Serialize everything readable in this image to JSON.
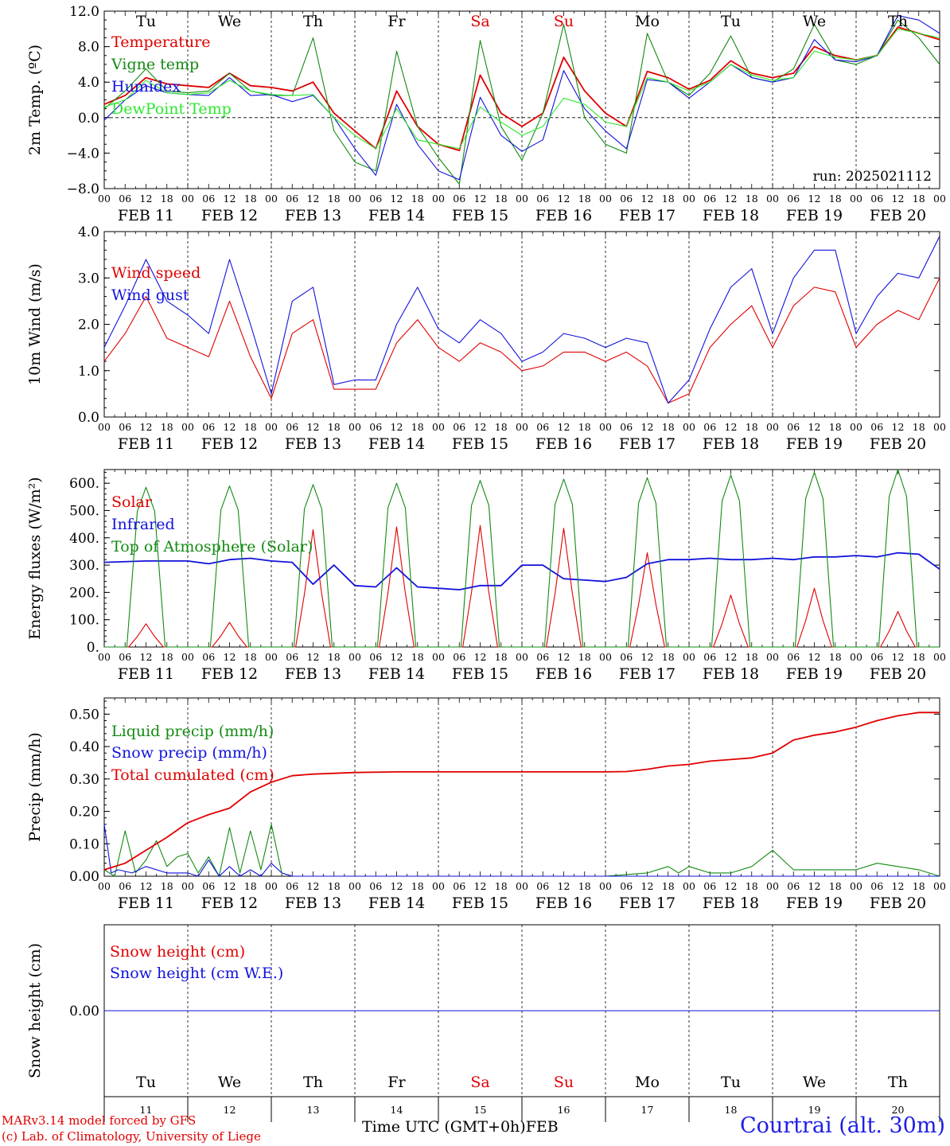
{
  "colors": {
    "red": "#e00000",
    "green": "#138a13",
    "blue": "#1212dd",
    "light_green": "#2de82d",
    "black": "#000000",
    "station_blue": "#1e1ee6"
  },
  "days": {
    "dates": [
      "FEB 11",
      "FEB 12",
      "FEB 13",
      "FEB 14",
      "FEB 15",
      "FEB 16",
      "FEB 17",
      "FEB 18",
      "FEB 19",
      "FEB 20"
    ],
    "weekdays": [
      "Tu",
      "We",
      "Th",
      "Fr",
      "Sa",
      "Su",
      "Mo",
      "Tu",
      "We",
      "Th"
    ],
    "weekend": [
      false,
      false,
      false,
      false,
      true,
      true,
      false,
      false,
      false,
      false
    ],
    "numbers": [
      "11",
      "12",
      "13",
      "14",
      "15",
      "16",
      "17",
      "18",
      "19",
      "20"
    ],
    "hour_labels": [
      "00",
      "06",
      "12",
      "18"
    ],
    "final_hour_label": "00"
  },
  "chart_data": [
    {
      "type": "line",
      "ylabel": "2m Temp. (ºC)",
      "ylim": [
        -8,
        12
      ],
      "yticks": [
        "12.0",
        "8.0",
        "4.0",
        "0.0",
        "−4.0",
        "−8.0"
      ],
      "zero_line": true,
      "annotation": "run: 2025021112",
      "x_unit": "hours since FEB 11 00 UTC",
      "series": [
        {
          "name": "Temperature",
          "color": "red",
          "x": [
            0,
            6,
            12,
            18,
            24,
            30,
            36,
            42,
            48,
            54,
            60,
            66,
            72,
            78,
            84,
            90,
            96,
            102,
            108,
            114,
            120,
            126,
            132,
            138,
            144,
            150,
            156,
            162,
            168,
            174,
            180,
            186,
            192,
            198,
            204,
            210,
            216,
            222,
            228,
            234,
            240
          ],
          "y": [
            1.5,
            2.5,
            4.5,
            3.8,
            3.6,
            3.4,
            5.0,
            3.6,
            3.4,
            3.0,
            4.0,
            0.5,
            -1.5,
            -3.5,
            3.0,
            -1.0,
            -3.0,
            -3.7,
            4.8,
            0.5,
            -1.0,
            0.5,
            6.8,
            3.0,
            0.5,
            -1.0,
            5.2,
            4.5,
            3.2,
            4.2,
            6.4,
            5.0,
            4.5,
            5.0,
            8.0,
            7.0,
            6.5,
            7.0,
            10.2,
            9.5,
            8.8
          ]
        },
        {
          "name": "Vigne temp",
          "color": "green",
          "x": [
            0,
            6,
            12,
            18,
            24,
            30,
            36,
            42,
            48,
            54,
            60,
            66,
            72,
            78,
            84,
            90,
            96,
            102,
            108,
            114,
            120,
            126,
            132,
            138,
            144,
            150,
            156,
            162,
            168,
            174,
            180,
            186,
            192,
            198,
            204,
            210,
            216,
            222,
            228,
            234,
            240
          ],
          "y": [
            1.0,
            3.0,
            5.5,
            3.0,
            2.8,
            3.0,
            5.0,
            3.0,
            2.5,
            2.5,
            9.0,
            -1.5,
            -5.0,
            -6.0,
            7.5,
            -1.0,
            -4.5,
            -7.5,
            8.7,
            -1.0,
            -4.8,
            0.5,
            10.5,
            0.0,
            -3.0,
            -4.0,
            9.5,
            4.0,
            2.5,
            5.0,
            9.2,
            4.5,
            4.0,
            5.5,
            10.5,
            6.5,
            6.0,
            7.0,
            11.0,
            9.0,
            6.0
          ]
        },
        {
          "name": "Humidex",
          "color": "blue",
          "x": [
            0,
            6,
            12,
            18,
            24,
            30,
            36,
            42,
            48,
            54,
            60,
            66,
            72,
            78,
            84,
            90,
            96,
            102,
            108,
            114,
            120,
            126,
            132,
            138,
            144,
            150,
            156,
            162,
            168,
            174,
            180,
            186,
            192,
            198,
            204,
            210,
            216,
            222,
            228,
            234,
            240
          ],
          "y": [
            -0.3,
            2.0,
            3.6,
            2.8,
            2.6,
            2.5,
            4.5,
            2.5,
            2.6,
            1.8,
            2.5,
            0.0,
            -3.5,
            -6.5,
            1.5,
            -3.0,
            -6.0,
            -7.0,
            2.3,
            -2.0,
            -3.8,
            -2.5,
            5.3,
            1.0,
            -1.5,
            -3.5,
            4.3,
            4.0,
            2.2,
            4.0,
            6.0,
            4.5,
            4.0,
            4.5,
            8.8,
            6.5,
            6.3,
            7.0,
            11.5,
            11.0,
            9.5
          ]
        },
        {
          "name": "DewPoint Temp",
          "color": "light_green",
          "x": [
            0,
            6,
            12,
            18,
            24,
            30,
            36,
            42,
            48,
            54,
            60,
            66,
            72,
            78,
            84,
            90,
            96,
            102,
            108,
            114,
            120,
            126,
            132,
            138,
            144,
            150,
            156,
            162,
            168,
            174,
            180,
            186,
            192,
            198,
            204,
            210,
            216,
            222,
            228,
            234,
            240
          ],
          "y": [
            1.2,
            2.0,
            4.2,
            2.8,
            2.6,
            2.8,
            4.2,
            3.0,
            2.6,
            2.5,
            2.6,
            0.0,
            -2.0,
            -3.5,
            1.0,
            -2.5,
            -3.0,
            -3.5,
            1.2,
            -0.5,
            -2.0,
            -1.0,
            2.2,
            1.5,
            -0.5,
            -1.0,
            4.5,
            4.0,
            3.0,
            4.0,
            6.0,
            4.8,
            4.2,
            4.5,
            7.5,
            6.8,
            6.5,
            7.0,
            10.0,
            9.5,
            9.0
          ]
        }
      ]
    },
    {
      "type": "line",
      "ylabel": "10m Wind (m/s)",
      "ylim": [
        0,
        4
      ],
      "yticks": [
        "4.0",
        "3.0",
        "2.0",
        "1.0",
        "0.0"
      ],
      "x_unit": "hours since FEB 11 00 UTC",
      "series": [
        {
          "name": "Wind speed",
          "color": "red",
          "x": [
            0,
            6,
            12,
            18,
            24,
            30,
            36,
            42,
            48,
            54,
            60,
            66,
            72,
            78,
            84,
            90,
            96,
            102,
            108,
            114,
            120,
            126,
            132,
            138,
            144,
            150,
            156,
            162,
            168,
            174,
            180,
            186,
            192,
            198,
            204,
            210,
            216,
            222,
            228,
            234,
            240
          ],
          "y": [
            1.2,
            1.8,
            2.6,
            1.7,
            1.5,
            1.3,
            2.5,
            1.3,
            0.4,
            1.8,
            2.1,
            0.6,
            0.6,
            0.6,
            1.6,
            2.1,
            1.5,
            1.2,
            1.6,
            1.4,
            1.0,
            1.1,
            1.4,
            1.4,
            1.2,
            1.4,
            1.1,
            0.3,
            0.5,
            1.5,
            2.0,
            2.4,
            1.5,
            2.4,
            2.8,
            2.7,
            1.5,
            2.0,
            2.3,
            2.1,
            3.0
          ]
        },
        {
          "name": "Wind gust",
          "color": "blue",
          "x": [
            0,
            6,
            12,
            18,
            24,
            30,
            36,
            42,
            48,
            54,
            60,
            66,
            72,
            78,
            84,
            90,
            96,
            102,
            108,
            114,
            120,
            126,
            132,
            138,
            144,
            150,
            156,
            162,
            168,
            174,
            180,
            186,
            192,
            198,
            204,
            210,
            216,
            222,
            228,
            234,
            240
          ],
          "y": [
            1.5,
            2.4,
            3.4,
            2.5,
            2.2,
            1.8,
            3.4,
            2.0,
            0.5,
            2.5,
            2.8,
            0.7,
            0.8,
            0.8,
            2.0,
            2.8,
            1.9,
            1.6,
            2.1,
            1.8,
            1.2,
            1.4,
            1.8,
            1.7,
            1.5,
            1.7,
            1.6,
            0.3,
            0.8,
            1.9,
            2.8,
            3.2,
            1.8,
            3.0,
            3.6,
            3.6,
            1.8,
            2.6,
            3.1,
            3.0,
            3.9
          ]
        }
      ]
    },
    {
      "type": "line",
      "ylabel": "Energy fluxes (W/m²)",
      "ylim": [
        0,
        650
      ],
      "yticks": [
        "600.",
        "500.",
        "400.",
        "300.",
        "200.",
        "100.",
        "0."
      ],
      "x_unit": "hours since FEB 11 00 UTC",
      "solar_x_unit": "hour of day",
      "series": [
        {
          "name": "Solar",
          "color": "red",
          "day_peaks": [
            85,
            90,
            430,
            440,
            445,
            435,
            345,
            190,
            215,
            130
          ],
          "x_of_day": [
            7,
            9.5,
            12,
            14.5,
            17
          ],
          "shape": [
            0,
            0.45,
            1,
            0.45,
            0
          ]
        },
        {
          "name": "Infrared",
          "color": "blue",
          "x": [
            0,
            12,
            24,
            30,
            36,
            42,
            48,
            54,
            60,
            66,
            72,
            78,
            84,
            90,
            96,
            102,
            108,
            114,
            120,
            126,
            132,
            138,
            144,
            150,
            156,
            162,
            168,
            174,
            180,
            186,
            192,
            198,
            204,
            210,
            216,
            222,
            228,
            234,
            240
          ],
          "y": [
            310,
            315,
            315,
            305,
            320,
            325,
            315,
            310,
            230,
            300,
            225,
            220,
            290,
            220,
            215,
            210,
            225,
            225,
            300,
            300,
            250,
            245,
            240,
            255,
            305,
            320,
            320,
            325,
            320,
            320,
            325,
            320,
            330,
            330,
            335,
            330,
            345,
            340,
            285
          ]
        },
        {
          "name": "Top of Atmosphere (Solar)",
          "color": "green",
          "day_peaks": [
            585,
            590,
            595,
            600,
            610,
            615,
            620,
            630,
            640,
            650
          ],
          "x_of_day": [
            6.5,
            9.5,
            12,
            14.5,
            17.5
          ],
          "shape": [
            0,
            0.85,
            1,
            0.85,
            0
          ]
        }
      ]
    },
    {
      "type": "line",
      "ylabel": "Precip (mm/h)",
      "ylim": [
        0,
        0.55
      ],
      "yticks": [
        "0.50",
        "0.40",
        "0.30",
        "0.20",
        "0.10",
        "0.00"
      ],
      "x_unit": "hours since FEB 11 00 UTC",
      "series": [
        {
          "name": "Liquid precip (mm/h)",
          "color": "green",
          "x": [
            0,
            3,
            6,
            9,
            12,
            15,
            18,
            21,
            24,
            27,
            30,
            33,
            36,
            39,
            42,
            45,
            48,
            51,
            54,
            60,
            72,
            84,
            96,
            120,
            144,
            156,
            162,
            165,
            168,
            174,
            180,
            186,
            192,
            198,
            204,
            210,
            216,
            222,
            228,
            234,
            240
          ],
          "y": [
            0.02,
            0.0,
            0.14,
            0.01,
            0.05,
            0.11,
            0.03,
            0.06,
            0.07,
            0.01,
            0.06,
            0.0,
            0.15,
            0.01,
            0.14,
            0.02,
            0.16,
            0.01,
            0.0,
            0.0,
            0.0,
            0.0,
            0.0,
            0.0,
            0.0,
            0.01,
            0.03,
            0.01,
            0.03,
            0.01,
            0.01,
            0.03,
            0.08,
            0.02,
            0.02,
            0.02,
            0.02,
            0.04,
            0.03,
            0.02,
            0.0
          ]
        },
        {
          "name": "Snow precip (mm/h)",
          "color": "blue",
          "x": [
            0,
            2,
            4,
            8,
            12,
            18,
            24,
            27,
            30,
            33,
            36,
            39,
            42,
            45,
            48,
            51,
            54,
            60,
            72,
            240
          ],
          "y": [
            0.16,
            0.01,
            0.02,
            0.01,
            0.03,
            0.01,
            0.01,
            0.0,
            0.05,
            0.0,
            0.03,
            0.0,
            0.02,
            0.0,
            0.04,
            0.01,
            0.0,
            0.0,
            0.0,
            0.0
          ]
        },
        {
          "name": "Total cumulated (cm)",
          "color": "red",
          "x": [
            0,
            6,
            12,
            18,
            24,
            30,
            36,
            42,
            48,
            54,
            60,
            72,
            84,
            96,
            108,
            120,
            132,
            144,
            150,
            156,
            162,
            168,
            174,
            180,
            186,
            192,
            198,
            204,
            210,
            216,
            222,
            228,
            234,
            240
          ],
          "y": [
            0.02,
            0.04,
            0.08,
            0.12,
            0.165,
            0.19,
            0.21,
            0.26,
            0.29,
            0.31,
            0.315,
            0.32,
            0.322,
            0.322,
            0.322,
            0.322,
            0.322,
            0.322,
            0.323,
            0.33,
            0.34,
            0.345,
            0.355,
            0.36,
            0.365,
            0.38,
            0.42,
            0.435,
            0.445,
            0.46,
            0.48,
            0.495,
            0.505,
            0.505
          ]
        }
      ]
    },
    {
      "type": "line",
      "ylabel": "Snow height (cm)",
      "ylim": [
        -1,
        1
      ],
      "yticks": [
        "0.00"
      ],
      "x_unit": "hours since FEB 11 00 UTC",
      "series": [
        {
          "name": "Snow height (cm)",
          "color": "red",
          "x": [
            0,
            240
          ],
          "y": [
            0,
            0
          ]
        },
        {
          "name": "Snow height (cm W.E.)",
          "color": "blue",
          "x": [
            0,
            240
          ],
          "y": [
            0,
            0
          ]
        }
      ]
    }
  ],
  "footer": {
    "credit_line1": "MARv3.14 model forced by GFS",
    "credit_line2": "(c) Lab. of Climatology, University of Liege",
    "x_title": "Time UTC (GMT+0h)",
    "month": "FEB",
    "station": "Courtrai (alt. 30m)"
  }
}
